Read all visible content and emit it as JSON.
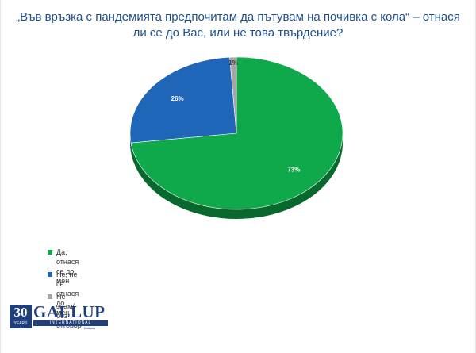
{
  "title": "„Във връзка с пандемията предпочитам да пътувам на почивка с кола“ – отнася ли се до Вас, или не това твърдение?",
  "chart_data": {
    "type": "pie",
    "title": "„Във връзка с пандемията предпочитам да пътувам на почивка с кола“ – отнася ли се до Вас, или не това твърдение?",
    "slices": [
      {
        "label": "Да, отнася се до мен",
        "value": 73,
        "display": "73%",
        "color": "#0fa84a"
      },
      {
        "label": "Не, не се отнася до мен",
        "value": 26,
        "display": "26%",
        "color": "#1f65b8"
      },
      {
        "label": "Не знам/без отговор",
        "value": 1,
        "display": "1%",
        "color": "#a6a6a6"
      }
    ],
    "legend_position": "bottom-left",
    "style": "3d"
  },
  "legend": [
    {
      "label": "Да, отнася се до мен",
      "color": "#0fa84a"
    },
    {
      "label": "Не, не се отнася до мен",
      "color": "#1f65b8"
    },
    {
      "label": "Не знам/без отговор",
      "color": "#a6a6a6"
    }
  ],
  "logo": {
    "number": "30",
    "years": "YEARS",
    "name": "GALLUP",
    "bar": "INTERNATIONAL",
    "sub": "Balkans"
  }
}
